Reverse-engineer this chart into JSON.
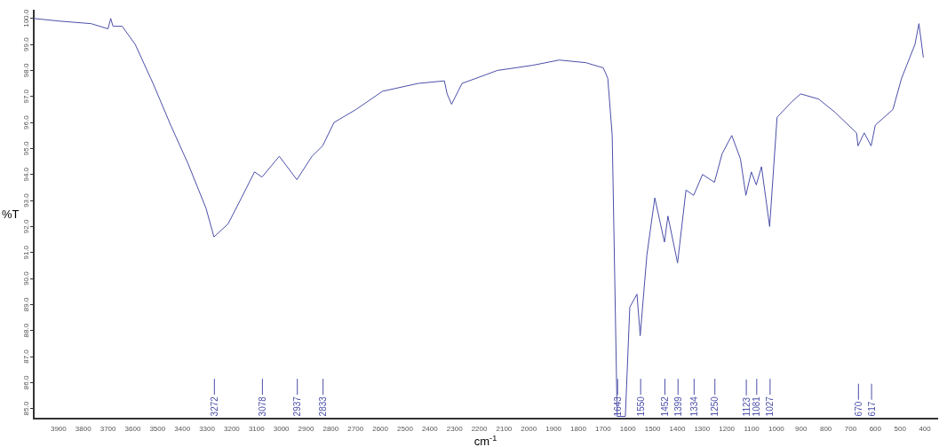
{
  "chart_data": {
    "type": "line",
    "xlabel": "cm$^{-1}$",
    "ylabel": "%T",
    "x": [
      4000,
      3900,
      3768,
      3700,
      3689,
      3680,
      3643,
      3590,
      3518,
      3447,
      3376,
      3304,
      3272,
      3215,
      3161,
      3108,
      3078,
      3008,
      2937,
      2876,
      2833,
      2787,
      2698,
      2591,
      2448,
      2341,
      2330,
      2312,
      2270,
      2127,
      1984,
      1877,
      1770,
      1699,
      1681,
      1663,
      1650,
      1643,
      1610,
      1592,
      1563,
      1550,
      1523,
      1491,
      1452,
      1438,
      1399,
      1365,
      1334,
      1298,
      1250,
      1219,
      1180,
      1145,
      1123,
      1101,
      1081,
      1060,
      1027,
      997,
      937,
      902,
      829,
      764,
      676,
      670,
      645,
      617,
      600,
      529,
      494,
      440,
      424,
      406
    ],
    "series": [
      {
        "color": "#4b4fa8",
        "values": [
          100.0,
          99.9,
          99.8,
          99.6,
          100.0,
          99.7,
          99.7,
          99.0,
          97.5,
          95.9,
          94.4,
          92.7,
          91.6,
          92.1,
          93.1,
          94.1,
          93.9,
          94.7,
          93.8,
          94.7,
          95.1,
          96.0,
          96.5,
          97.2,
          97.5,
          97.6,
          97.1,
          96.7,
          97.5,
          98.0,
          98.2,
          98.4,
          98.3,
          98.1,
          97.7,
          95.5,
          88.5,
          84.7,
          84.7,
          88.9,
          89.4,
          87.8,
          90.9,
          93.1,
          91.4,
          92.4,
          90.6,
          93.4,
          93.2,
          94.0,
          93.7,
          94.8,
          95.5,
          94.6,
          93.2,
          94.1,
          93.6,
          94.3,
          92.0,
          96.2,
          96.8,
          97.1,
          96.9,
          96.4,
          95.6,
          95.1,
          95.6,
          95.1,
          95.9,
          96.5,
          97.7,
          99.0,
          99.8,
          98.5
        ]
      }
    ],
    "xlim": [
      4000,
      350
    ],
    "xticks": [
      3900,
      3800,
      3700,
      3600,
      3500,
      3400,
      3300,
      3200,
      3100,
      3000,
      2900,
      2800,
      2700,
      2600,
      2500,
      2400,
      2300,
      2200,
      2100,
      2000,
      1900,
      1800,
      1700,
      1600,
      1500,
      1400,
      1300,
      1200,
      1100,
      1000,
      900,
      800,
      700,
      600,
      500,
      400
    ],
    "ylim": [
      84.6,
      100.3
    ],
    "yticks": [
      {
        "value": 85,
        "label": "85.0"
      },
      {
        "value": 86,
        "label": "86.0"
      },
      {
        "value": 87,
        "label": "87.0"
      },
      {
        "value": 88,
        "label": "88.0"
      },
      {
        "value": 89,
        "label": "89.0"
      },
      {
        "value": 90,
        "label": "90.0"
      },
      {
        "value": 91,
        "label": "91.0"
      },
      {
        "value": 92,
        "label": "92.0"
      },
      {
        "value": 93,
        "label": "93.0"
      },
      {
        "value": 94,
        "label": "94.0"
      },
      {
        "value": 95,
        "label": "95.0"
      },
      {
        "value": 96,
        "label": "96.0"
      },
      {
        "value": 97,
        "label": "97.0"
      },
      {
        "value": 98,
        "label": "98.0"
      },
      {
        "value": 99,
        "label": "99.0"
      },
      {
        "value": 100,
        "label": "100.0"
      }
    ],
    "annotations": [
      {
        "text": "3272",
        "x": 3272
      },
      {
        "text": "3078",
        "x": 3078
      },
      {
        "text": "2937",
        "x": 2937
      },
      {
        "text": "2833",
        "x": 2833
      },
      {
        "text": "1643",
        "x": 1643
      },
      {
        "text": "1550",
        "x": 1550
      },
      {
        "text": "1452",
        "x": 1452
      },
      {
        "text": "1399",
        "x": 1399
      },
      {
        "text": "1334",
        "x": 1334
      },
      {
        "text": "1250",
        "x": 1250
      },
      {
        "text": "1123",
        "x": 1123
      },
      {
        "text": "1081",
        "x": 1081
      },
      {
        "text": "1027",
        "x": 1027
      },
      {
        "text": "670",
        "x": 670
      },
      {
        "text": "617",
        "x": 617
      }
    ],
    "grid": false,
    "legend": false,
    "marker": "none",
    "line_style": "solid"
  }
}
